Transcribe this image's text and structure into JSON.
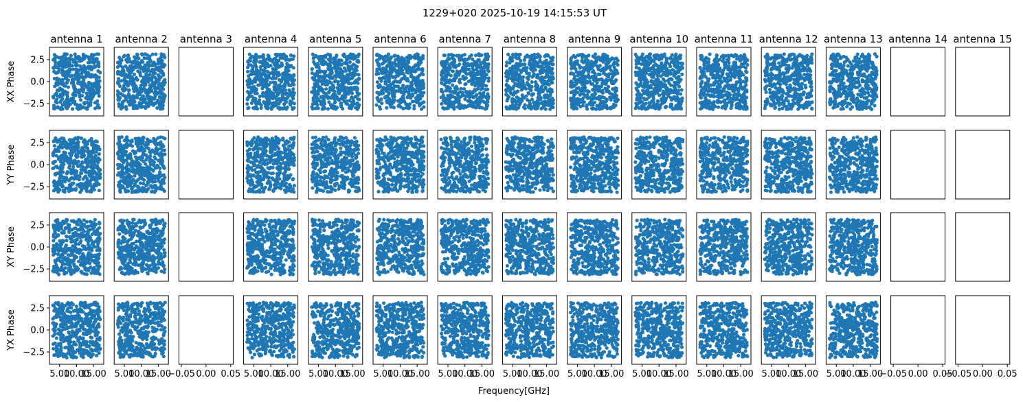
{
  "figure": {
    "suptitle": "1229+020 2025-10-19 14:15:53 UT",
    "xlabel": "Frequency[GHz]"
  },
  "style": {
    "marker_color": "#1f77b4",
    "axes_edge_color": "#000000"
  },
  "chart_data": {
    "type": "scatter",
    "layout": "grid",
    "rows": [
      "XX Phase",
      "YY Phase",
      "XY Phase",
      "YX Phase"
    ],
    "columns": [
      "antenna 1",
      "antenna 2",
      "antenna 3",
      "antenna 4",
      "antenna 5",
      "antenna 6",
      "antenna 7",
      "antenna 8",
      "antenna 9",
      "antenna 10",
      "antenna 11",
      "antenna 12",
      "antenna 13",
      "antenna 14",
      "antenna 15"
    ],
    "xlabel": "Frequency[GHz]",
    "ylabel_by_row": [
      "XX Phase",
      "YY Phase",
      "XY Phase",
      "YX Phase"
    ],
    "ylim": [
      -3.9,
      3.9
    ],
    "y_ticks": [
      2.5,
      0.0,
      -2.5
    ],
    "y_tick_labels": [
      "2.5",
      "0.0",
      "−2.5"
    ],
    "x_ticks_with_data": [
      5.0,
      10.0,
      15.0
    ],
    "x_tick_labels_with_data": [
      "5.00",
      "10.00",
      "15.00"
    ],
    "x_range_with_data": [
      2.0,
      18.0
    ],
    "x_ticks_empty": [
      -0.05,
      0.0,
      0.05
    ],
    "x_tick_labels_empty": [
      "−0.05",
      "0.00",
      "0.05"
    ],
    "x_range_empty": [
      -0.055,
      0.055
    ],
    "antennas_with_data": [
      "antenna 1",
      "antenna 2",
      "antenna 4",
      "antenna 5",
      "antenna 6",
      "antenna 7",
      "antenna 8",
      "antenna 9",
      "antenna 10",
      "antenna 11",
      "antenna 12",
      "antenna 13"
    ],
    "antennas_empty": [
      "antenna 3",
      "antenna 14",
      "antenna 15"
    ],
    "points_per_panel": 450,
    "data_description": {
      "x_distribution": "uniform from 3.0 to 17.0 GHz",
      "y_distribution": "uniform phase from -3.14 to 3.14 rad"
    },
    "grid": false,
    "legend": "none"
  }
}
